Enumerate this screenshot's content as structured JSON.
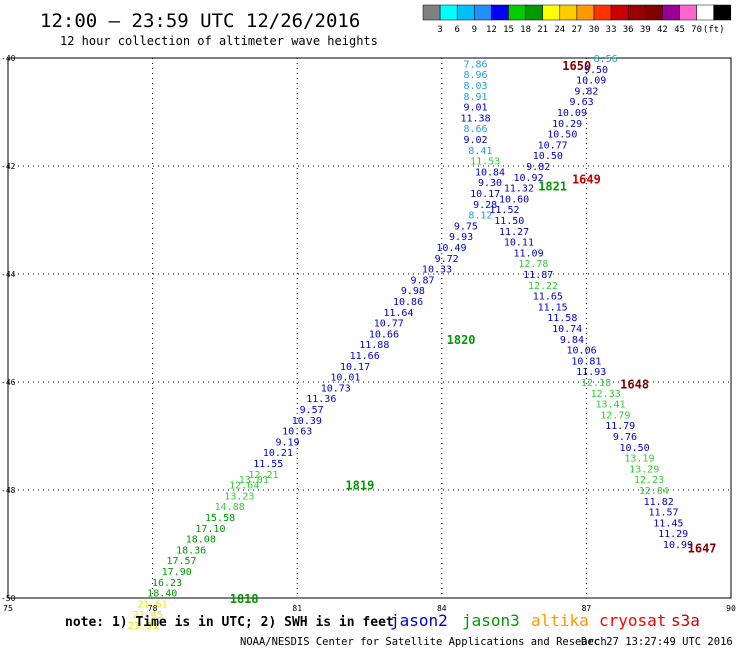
{
  "header": {
    "title": "12:00 – 23:59 UTC 12/26/2016",
    "subtitle": "12 hour collection of altimeter wave heights"
  },
  "colorbar": {
    "labels": [
      "3",
      "6",
      "9",
      "12",
      "15",
      "18",
      "21",
      "24",
      "27",
      "30",
      "33",
      "36",
      "39",
      "42",
      "45",
      "70",
      "(ft)"
    ],
    "colors": [
      "#808080",
      "#00ffff",
      "#00bfff",
      "#1e90ff",
      "#0000ff",
      "#00cc00",
      "#009900",
      "#ffff00",
      "#ffcc00",
      "#ff9900",
      "#ff3300",
      "#cc0000",
      "#990000",
      "#800000",
      "#990099",
      "#ff66cc",
      "#ffffff",
      "#000000"
    ]
  },
  "footer": {
    "note": "note: 1) Time is in UTC; 2) SWH is in feet",
    "legend": [
      {
        "label": "jason2",
        "color": "#0000cc"
      },
      {
        "label": "jason3",
        "color": "#009900"
      },
      {
        "label": "altika",
        "color": "#ff9900"
      },
      {
        "label": "cryosat",
        "color": "#ff0000"
      },
      {
        "label": "s3a",
        "color": "#cc0000"
      }
    ],
    "credit": "NOAA/NESDIS Center for Satellite Applications and Research",
    "timestamp": "Dec 27 13:27:49 UTC 2016"
  },
  "chart_data": {
    "type": "scatter",
    "xlim": [
      75,
      90
    ],
    "ylim": [
      -50,
      -40
    ],
    "x_ticks": [
      "75",
      "78",
      "81",
      "84",
      "87",
      "90"
    ],
    "y_ticks": [
      "-40",
      "-42",
      "-44",
      "-46",
      "-48",
      "-50"
    ],
    "grid": true,
    "track_labels": [
      {
        "text": "1650",
        "x": 86.8,
        "y": -40.15,
        "color": "#800000"
      },
      {
        "text": "1649",
        "x": 87.0,
        "y": -42.25,
        "color": "#cc0000"
      },
      {
        "text": "1821",
        "x": 86.3,
        "y": -42.38,
        "color": "#009900"
      },
      {
        "text": "1820",
        "x": 84.4,
        "y": -45.22,
        "color": "#009900"
      },
      {
        "text": "1648",
        "x": 88.0,
        "y": -46.05,
        "color": "#800000"
      },
      {
        "text": "1819",
        "x": 82.3,
        "y": -47.92,
        "color": "#009900"
      },
      {
        "text": "1647",
        "x": 89.4,
        "y": -49.08,
        "color": "#800000"
      },
      {
        "text": "1818",
        "x": 79.9,
        "y": -50.02,
        "color": "#009900"
      }
    ],
    "points": [
      {
        "x": 84.7,
        "y": -40.1,
        "v": "7.86",
        "c": "#1ea0dc"
      },
      {
        "x": 84.7,
        "y": -40.3,
        "v": "8.96",
        "c": "#1ea0dc"
      },
      {
        "x": 84.7,
        "y": -40.5,
        "v": "8.03",
        "c": "#1ea0dc"
      },
      {
        "x": 84.7,
        "y": -40.7,
        "v": "8.91",
        "c": "#1ea0dc"
      },
      {
        "x": 84.7,
        "y": -40.9,
        "v": "9.01",
        "c": "#0000cc"
      },
      {
        "x": 84.7,
        "y": -41.1,
        "v": "11.38",
        "c": "#0000cc"
      },
      {
        "x": 84.7,
        "y": -41.3,
        "v": "8.66",
        "c": "#1ea0dc"
      },
      {
        "x": 84.7,
        "y": -41.5,
        "v": "9.02",
        "c": "#0000cc"
      },
      {
        "x": 84.8,
        "y": -41.7,
        "v": "8.41",
        "c": "#1ea0dc"
      },
      {
        "x": 84.9,
        "y": -41.9,
        "v": "11.53",
        "c": "#33cc33"
      },
      {
        "x": 85.0,
        "y": -42.1,
        "v": "10.84",
        "c": "#0000cc"
      },
      {
        "x": 85.0,
        "y": -42.3,
        "v": "9.30",
        "c": "#0000cc"
      },
      {
        "x": 84.9,
        "y": -42.5,
        "v": "10.17",
        "c": "#0000cc"
      },
      {
        "x": 84.9,
        "y": -42.7,
        "v": "9.28",
        "c": "#0000cc"
      },
      {
        "x": 84.8,
        "y": -42.9,
        "v": "8.12",
        "c": "#1ea0dc"
      },
      {
        "x": 84.5,
        "y": -43.1,
        "v": "9.75",
        "c": "#0000cc"
      },
      {
        "x": 84.4,
        "y": -43.3,
        "v": "9.93",
        "c": "#0000cc"
      },
      {
        "x": 84.2,
        "y": -43.5,
        "v": "10.49",
        "c": "#0000cc"
      },
      {
        "x": 84.1,
        "y": -43.7,
        "v": "9.72",
        "c": "#0000cc"
      },
      {
        "x": 83.9,
        "y": -43.9,
        "v": "10.33",
        "c": "#0000cc"
      },
      {
        "x": 83.6,
        "y": -44.1,
        "v": "9.87",
        "c": "#0000cc"
      },
      {
        "x": 83.4,
        "y": -44.3,
        "v": "9.98",
        "c": "#0000cc"
      },
      {
        "x": 83.3,
        "y": -44.5,
        "v": "10.86",
        "c": "#0000cc"
      },
      {
        "x": 83.1,
        "y": -44.7,
        "v": "11.64",
        "c": "#0000cc"
      },
      {
        "x": 82.9,
        "y": -44.9,
        "v": "10.77",
        "c": "#0000cc"
      },
      {
        "x": 82.8,
        "y": -45.1,
        "v": "10.66",
        "c": "#0000cc"
      },
      {
        "x": 82.6,
        "y": -45.3,
        "v": "11.88",
        "c": "#0000cc"
      },
      {
        "x": 82.4,
        "y": -45.5,
        "v": "11.66",
        "c": "#0000cc"
      },
      {
        "x": 82.2,
        "y": -45.7,
        "v": "10.17",
        "c": "#0000cc"
      },
      {
        "x": 82.0,
        "y": -45.9,
        "v": "10.01",
        "c": "#0000cc"
      },
      {
        "x": 81.8,
        "y": -46.1,
        "v": "10.73",
        "c": "#0000cc"
      },
      {
        "x": 81.5,
        "y": -46.3,
        "v": "11.36",
        "c": "#0000cc"
      },
      {
        "x": 81.3,
        "y": -46.5,
        "v": "9.57",
        "c": "#0000cc"
      },
      {
        "x": 81.2,
        "y": -46.7,
        "v": "10.39",
        "c": "#0000cc"
      },
      {
        "x": 81.0,
        "y": -46.9,
        "v": "10.63",
        "c": "#0000cc"
      },
      {
        "x": 80.8,
        "y": -47.1,
        "v": "9.19",
        "c": "#0000cc"
      },
      {
        "x": 80.6,
        "y": -47.3,
        "v": "10.21",
        "c": "#0000cc"
      },
      {
        "x": 80.4,
        "y": -47.5,
        "v": "11.55",
        "c": "#0000cc"
      },
      {
        "x": 80.3,
        "y": -47.7,
        "v": "12.21",
        "c": "#33cc33"
      },
      {
        "x": 80.1,
        "y": -47.8,
        "v": "13.01",
        "c": "#33cc33"
      },
      {
        "x": 79.9,
        "y": -47.9,
        "v": "12.64",
        "c": "#33cc33"
      },
      {
        "x": 79.8,
        "y": -48.1,
        "v": "13.23",
        "c": "#33cc33"
      },
      {
        "x": 79.6,
        "y": -48.3,
        "v": "14.88",
        "c": "#33cc33"
      },
      {
        "x": 79.4,
        "y": -48.5,
        "v": "15.58",
        "c": "#009900"
      },
      {
        "x": 79.2,
        "y": -48.7,
        "v": "17.10",
        "c": "#009900"
      },
      {
        "x": 79.0,
        "y": -48.9,
        "v": "18.08",
        "c": "#009900"
      },
      {
        "x": 78.8,
        "y": -49.1,
        "v": "18.36",
        "c": "#009900"
      },
      {
        "x": 78.6,
        "y": -49.3,
        "v": "17.57",
        "c": "#009900"
      },
      {
        "x": 78.5,
        "y": -49.5,
        "v": "17.90",
        "c": "#009900"
      },
      {
        "x": 78.3,
        "y": -49.7,
        "v": "16.23",
        "c": "#009900"
      },
      {
        "x": 78.2,
        "y": -49.9,
        "v": "18.40",
        "c": "#009900"
      },
      {
        "x": 78.0,
        "y": -50.1,
        "v": "21.61",
        "c": "#e8e800"
      },
      {
        "x": 77.9,
        "y": -50.3,
        "v": "21.45",
        "c": "#e8e800"
      },
      {
        "x": 77.8,
        "y": -50.5,
        "v": "23.93",
        "c": "#e8e800"
      },
      {
        "x": 87.4,
        "y": -40.0,
        "v": "8.56",
        "c": "#1ea0dc"
      },
      {
        "x": 87.2,
        "y": -40.2,
        "v": "9.50",
        "c": "#0000cc"
      },
      {
        "x": 87.1,
        "y": -40.4,
        "v": "10.09",
        "c": "#0000cc"
      },
      {
        "x": 87.0,
        "y": -40.6,
        "v": "9.82",
        "c": "#0000cc"
      },
      {
        "x": 86.9,
        "y": -40.8,
        "v": "9.63",
        "c": "#0000cc"
      },
      {
        "x": 86.7,
        "y": -41.0,
        "v": "10.09",
        "c": "#0000cc"
      },
      {
        "x": 86.6,
        "y": -41.2,
        "v": "10.29",
        "c": "#0000cc"
      },
      {
        "x": 86.5,
        "y": -41.4,
        "v": "10.50",
        "c": "#0000cc"
      },
      {
        "x": 86.3,
        "y": -41.6,
        "v": "10.77",
        "c": "#0000cc"
      },
      {
        "x": 86.2,
        "y": -41.8,
        "v": "10.50",
        "c": "#0000cc"
      },
      {
        "x": 86.0,
        "y": -42.0,
        "v": "9.82",
        "c": "#0000cc"
      },
      {
        "x": 85.8,
        "y": -42.2,
        "v": "10.92",
        "c": "#0000cc"
      },
      {
        "x": 85.6,
        "y": -42.4,
        "v": "11.32",
        "c": "#0000cc"
      },
      {
        "x": 85.5,
        "y": -42.6,
        "v": "10.60",
        "c": "#0000cc"
      },
      {
        "x": 85.3,
        "y": -42.8,
        "v": "11.52",
        "c": "#0000cc"
      },
      {
        "x": 85.4,
        "y": -43.0,
        "v": "11.50",
        "c": "#0000cc"
      },
      {
        "x": 85.5,
        "y": -43.2,
        "v": "11.27",
        "c": "#0000cc"
      },
      {
        "x": 85.6,
        "y": -43.4,
        "v": "10.11",
        "c": "#0000cc"
      },
      {
        "x": 85.8,
        "y": -43.6,
        "v": "11.09",
        "c": "#0000cc"
      },
      {
        "x": 85.9,
        "y": -43.8,
        "v": "12.78",
        "c": "#33cc33"
      },
      {
        "x": 86.0,
        "y": -44.0,
        "v": "11.87",
        "c": "#0000cc"
      },
      {
        "x": 86.1,
        "y": -44.2,
        "v": "12.22",
        "c": "#33cc33"
      },
      {
        "x": 86.2,
        "y": -44.4,
        "v": "11.65",
        "c": "#0000cc"
      },
      {
        "x": 86.3,
        "y": -44.6,
        "v": "11.15",
        "c": "#0000cc"
      },
      {
        "x": 86.5,
        "y": -44.8,
        "v": "11.58",
        "c": "#0000cc"
      },
      {
        "x": 86.6,
        "y": -45.0,
        "v": "10.74",
        "c": "#0000cc"
      },
      {
        "x": 86.7,
        "y": -45.2,
        "v": "9.84",
        "c": "#0000cc"
      },
      {
        "x": 86.9,
        "y": -45.4,
        "v": "10.06",
        "c": "#0000cc"
      },
      {
        "x": 87.0,
        "y": -45.6,
        "v": "10.81",
        "c": "#0000cc"
      },
      {
        "x": 87.1,
        "y": -45.8,
        "v": "11.93",
        "c": "#0000cc"
      },
      {
        "x": 87.2,
        "y": -46.0,
        "v": "12.18",
        "c": "#33cc33"
      },
      {
        "x": 87.4,
        "y": -46.2,
        "v": "12.33",
        "c": "#33cc33"
      },
      {
        "x": 87.5,
        "y": -46.4,
        "v": "13.41",
        "c": "#33cc33"
      },
      {
        "x": 87.6,
        "y": -46.6,
        "v": "12.79",
        "c": "#33cc33"
      },
      {
        "x": 87.7,
        "y": -46.8,
        "v": "11.79",
        "c": "#0000cc"
      },
      {
        "x": 87.8,
        "y": -47.0,
        "v": "9.76",
        "c": "#0000cc"
      },
      {
        "x": 88.0,
        "y": -47.2,
        "v": "10.50",
        "c": "#0000cc"
      },
      {
        "x": 88.1,
        "y": -47.4,
        "v": "13.19",
        "c": "#33cc33"
      },
      {
        "x": 88.2,
        "y": -47.6,
        "v": "13.29",
        "c": "#33cc33"
      },
      {
        "x": 88.3,
        "y": -47.8,
        "v": "12.23",
        "c": "#33cc33"
      },
      {
        "x": 88.4,
        "y": -48.0,
        "v": "12.84",
        "c": "#33cc33"
      },
      {
        "x": 88.5,
        "y": -48.2,
        "v": "11.82",
        "c": "#0000cc"
      },
      {
        "x": 88.6,
        "y": -48.4,
        "v": "11.57",
        "c": "#0000cc"
      },
      {
        "x": 88.7,
        "y": -48.6,
        "v": "11.45",
        "c": "#0000cc"
      },
      {
        "x": 88.8,
        "y": -48.8,
        "v": "11.29",
        "c": "#0000cc"
      },
      {
        "x": 88.9,
        "y": -49.0,
        "v": "10.99",
        "c": "#0000cc"
      }
    ]
  }
}
